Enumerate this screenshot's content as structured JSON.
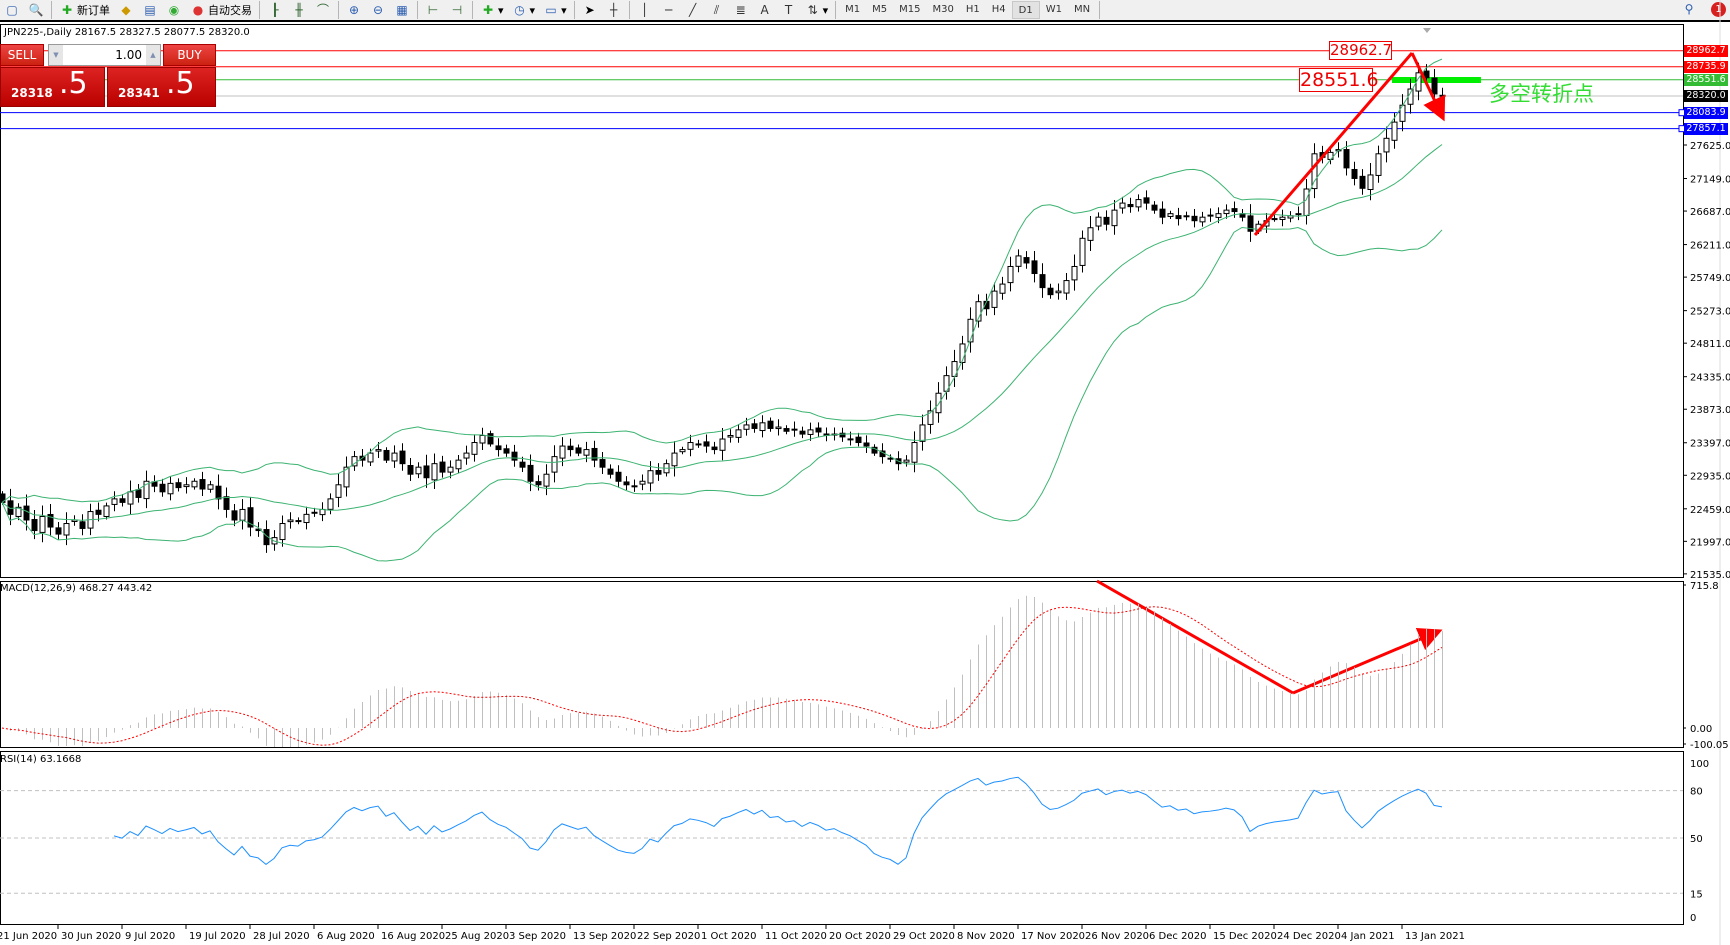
{
  "toolbar": {
    "new_order": "新订单",
    "auto_trading": "自动交易",
    "timeframes": [
      "M1",
      "M5",
      "M15",
      "M30",
      "H1",
      "H4",
      "D1",
      "W1",
      "MN"
    ],
    "active_timeframe": "D1",
    "notification_count": "1"
  },
  "symbol_header": "JPN225-,Daily  28167.5 28327.5 28077.5 28320.0",
  "trade_panel": {
    "sell_label": "SELL",
    "buy_label": "BUY",
    "lot": "1.00",
    "sell_big": "28318",
    "sell_small": ".5",
    "buy_big": "28341",
    "buy_small": ".5"
  },
  "levels": [
    {
      "price": 28962.7,
      "label": "28962.7",
      "color": "#ff0000"
    },
    {
      "price": 28735.9,
      "label": "28735.9",
      "color": "#ff0000"
    },
    {
      "price": 28551.6,
      "label": "28551.6",
      "color": "#33bb33"
    },
    {
      "price": 28320.0,
      "label": "28320.0",
      "color": "#000000",
      "line": "#c0c0c0"
    },
    {
      "price": 28083.9,
      "label": "28083.9",
      "color": "#0000ff"
    },
    {
      "price": 27857.1,
      "label": "27857.1",
      "color": "#0000ff"
    }
  ],
  "annotations": {
    "high_box": "28962.7",
    "pivot_box": "28551.6",
    "pivot_text": "多空转折点",
    "arrow_color": "#ff0000",
    "pivot_color": "#00ee00"
  },
  "price_axis": [
    "27625.0",
    "27149.0",
    "26687.0",
    "26211.0",
    "25749.0",
    "25273.0",
    "24811.0",
    "24335.0",
    "23873.0",
    "23397.0",
    "22935.0",
    "22459.0",
    "21997.0",
    "21535.0"
  ],
  "macd": {
    "header": "MACD(12,26,9) 468.27 443.42",
    "axis": [
      "715.8",
      "0.00",
      "-100.05"
    ],
    "fast": 12,
    "slow": 26,
    "signal": 9
  },
  "rsi": {
    "header": "RSI(14) 63.1668",
    "axis": [
      "100",
      "80",
      "50",
      "15",
      "0"
    ],
    "period": 14,
    "color": "#1e90ff"
  },
  "dates": [
    "21 Jun 2020",
    "30 Jun 2020",
    "9 Jul 2020",
    "19 Jul 2020",
    "28 Jul 2020",
    "6 Aug 2020",
    "16 Aug 2020",
    "25 Aug 2020",
    "3 Sep 2020",
    "13 Sep 2020",
    "22 Sep 2020",
    "1 Oct 2020",
    "11 Oct 2020",
    "20 Oct 2020",
    "29 Oct 2020",
    "8 Nov 2020",
    "17 Nov 2020",
    "26 Nov 2020",
    "6 Dec 2020",
    "15 Dec 2020",
    "24 Dec 2020",
    "4 Jan 2021",
    "13 Jan 2021"
  ],
  "chart_data": {
    "type": "candlestick",
    "symbol": "JPN225-",
    "timeframe": "Daily",
    "ylim": [
      21535,
      29000
    ],
    "bollinger": {
      "period": 20,
      "deviation": 2,
      "color": "#3cb371"
    },
    "closes": [
      22550,
      22380,
      22480,
      22300,
      22150,
      22350,
      22200,
      22100,
      22250,
      22300,
      22180,
      22420,
      22380,
      22500,
      22600,
      22550,
      22700,
      22620,
      22850,
      22780,
      22700,
      22820,
      22760,
      22800,
      22850,
      22740,
      22800,
      22600,
      22450,
      22300,
      22450,
      22200,
      22150,
      21950,
      22050,
      22250,
      22300,
      22280,
      22380,
      22400,
      22450,
      22600,
      22800,
      23050,
      23200,
      23150,
      23250,
      23300,
      23150,
      23250,
      23100,
      22950,
      23050,
      22900,
      23100,
      22980,
      23050,
      23150,
      23250,
      23400,
      23500,
      23380,
      23300,
      23250,
      23150,
      23050,
      22850,
      22800,
      22950,
      23200,
      23350,
      23300,
      23250,
      23300,
      23150,
      23050,
      22950,
      22850,
      22800,
      22780,
      22850,
      23000,
      22950,
      23100,
      23250,
      23300,
      23400,
      23380,
      23350,
      23300,
      23450,
      23500,
      23580,
      23650,
      23600,
      23680,
      23600,
      23620,
      23560,
      23580,
      23520,
      23580,
      23550,
      23500,
      23520,
      23480,
      23450,
      23400,
      23350,
      23250,
      23200,
      23170,
      23100,
      23150,
      23400,
      23650,
      23850,
      24100,
      24350,
      24550,
      24800,
      25150,
      25400,
      25300,
      25550,
      25650,
      25900,
      26050,
      25950,
      25800,
      25600,
      25500,
      25550,
      25700,
      25900,
      26300,
      26450,
      26600,
      26500,
      26700,
      26800,
      26750,
      26850,
      26800,
      26700,
      26600,
      26650,
      26580,
      26620,
      26550,
      26600,
      26620,
      26650,
      26700,
      26680,
      26600,
      26400,
      26500,
      26550,
      26580,
      26600,
      26620,
      26650,
      27000,
      27500,
      27450,
      27520,
      27560,
      27300,
      27150,
      27010,
      27200,
      27500,
      27720,
      27950,
      28190,
      28420,
      28650,
      28580,
      28350,
      28320
    ]
  }
}
